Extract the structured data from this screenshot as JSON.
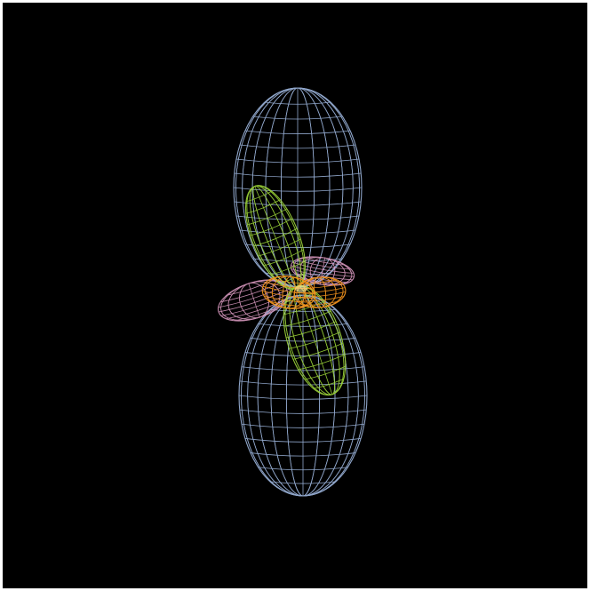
{
  "scene": {
    "background": "#000000",
    "frame_border": "#ffffff",
    "lobes": [
      {
        "name": "upper-lobe",
        "color": "#a9c3ee"
      },
      {
        "name": "lower-lobe",
        "color": "#a9c3ee"
      },
      {
        "name": "green-lobe-upper",
        "color": "#9fd83a"
      },
      {
        "name": "green-lobe-lower",
        "color": "#9fd83a"
      },
      {
        "name": "pink-lobe-left",
        "color": "#e3a0c8"
      },
      {
        "name": "pink-lobe-right",
        "color": "#e3a0c8"
      },
      {
        "name": "orange-lobe-left",
        "color": "#f0921e"
      },
      {
        "name": "orange-lobe-right",
        "color": "#f0921e"
      }
    ]
  }
}
